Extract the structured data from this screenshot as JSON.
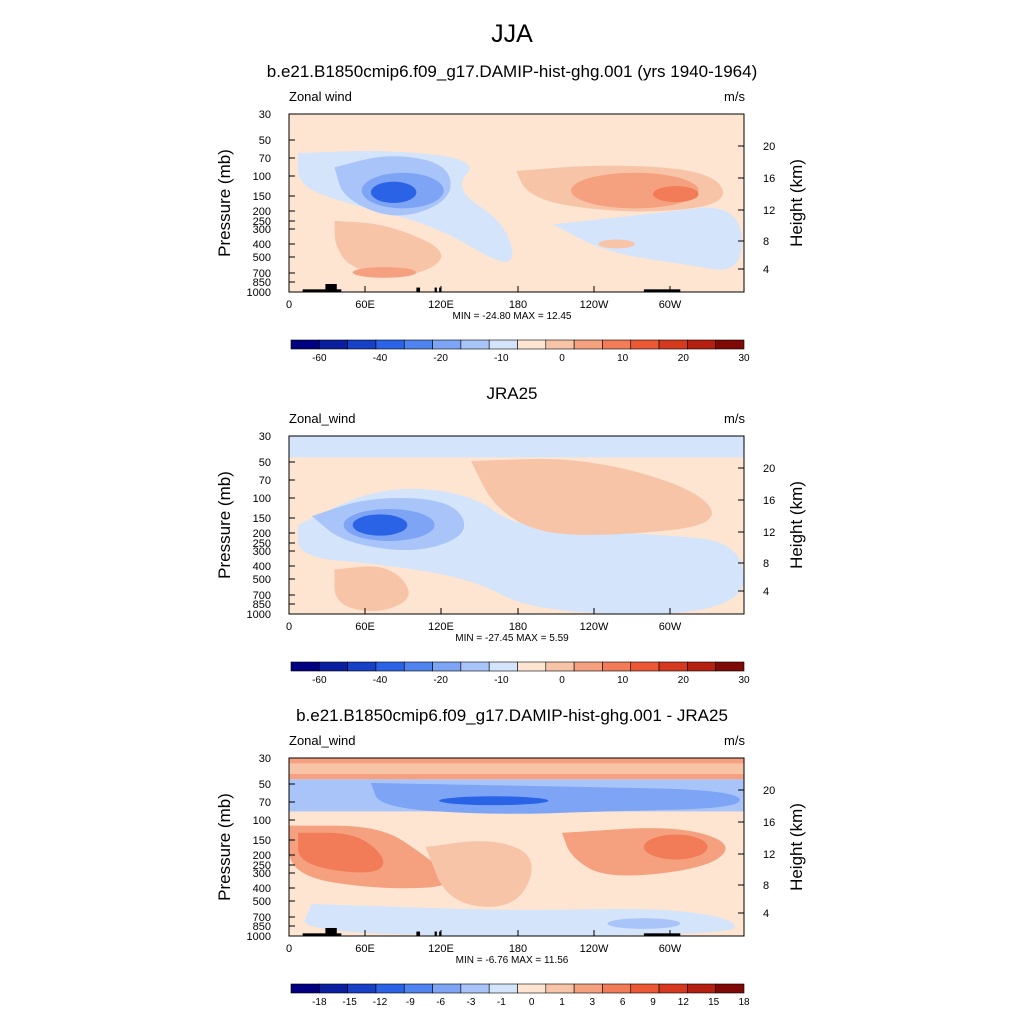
{
  "page": {
    "title": "JJA"
  },
  "colors": {
    "scale": [
      "#000080",
      "#0a1fa0",
      "#1640c6",
      "#2a63e6",
      "#4f84f0",
      "#7ea5f5",
      "#a9c4f8",
      "#d3e4fb",
      "#fde5d2",
      "#f8c4a8",
      "#f5a07f",
      "#f27c57",
      "#ec5834",
      "#d53a1e",
      "#b51f10",
      "#7f0a05"
    ]
  },
  "chart_data": [
    {
      "type": "heatmap",
      "title": "b.e21.B1850cmip6.f09_g17.DAMIP-hist-ghg.001 (yrs 1940-1964)",
      "left_label": "Zonal wind",
      "units_label": "m/s",
      "ylabel": "Pressure (mb)",
      "ylabel_right": "Height (km)",
      "x_tick_labels": [
        "0",
        "60E",
        "120E",
        "180",
        "120W",
        "60W"
      ],
      "y_tick_labels": [
        "30",
        "50",
        "70",
        "100",
        "150",
        "200",
        "250",
        "300",
        "400",
        "500",
        "700",
        "850",
        "1000"
      ],
      "y_right_tick_labels": [
        "20",
        "16",
        "12",
        "8",
        "4"
      ],
      "stats": "MIN = -24.80  MAX =  12.45",
      "colorbar_labels": [
        "-60",
        "-40",
        "-20",
        "-10",
        "0",
        "10",
        "20",
        "30"
      ],
      "grid": false
    },
    {
      "type": "heatmap",
      "title": "JRA25",
      "left_label": "Zonal_wind",
      "units_label": "m/s",
      "ylabel": "Pressure (mb)",
      "ylabel_right": "Height (km)",
      "x_tick_labels": [
        "0",
        "60E",
        "120E",
        "180",
        "120W",
        "60W"
      ],
      "y_tick_labels": [
        "30",
        "50",
        "70",
        "100",
        "150",
        "200",
        "250",
        "300",
        "400",
        "500",
        "700",
        "850",
        "1000"
      ],
      "y_right_tick_labels": [
        "20",
        "16",
        "12",
        "8",
        "4"
      ],
      "stats": "MIN = -27.45  MAX =   5.59",
      "colorbar_labels": [
        "-60",
        "-40",
        "-20",
        "-10",
        "0",
        "10",
        "20",
        "30"
      ],
      "grid": false
    },
    {
      "type": "heatmap",
      "title": "b.e21.B1850cmip6.f09_g17.DAMIP-hist-ghg.001 - JRA25",
      "left_label": "Zonal_wind",
      "units_label": "m/s",
      "ylabel": "Pressure (mb)",
      "ylabel_right": "Height (km)",
      "x_tick_labels": [
        "0",
        "60E",
        "120E",
        "180",
        "120W",
        "60W"
      ],
      "y_tick_labels": [
        "30",
        "50",
        "70",
        "100",
        "150",
        "200",
        "250",
        "300",
        "400",
        "500",
        "700",
        "850",
        "1000"
      ],
      "y_right_tick_labels": [
        "20",
        "16",
        "12",
        "8",
        "4"
      ],
      "stats": "MIN =  -6.76  MAX =  11.56",
      "colorbar_labels": [
        "-18",
        "-15",
        "-12",
        "-9",
        "-6",
        "-3",
        "-1",
        "0",
        "1",
        "3",
        "6",
        "9",
        "12",
        "15",
        "18"
      ],
      "grid": false
    }
  ]
}
